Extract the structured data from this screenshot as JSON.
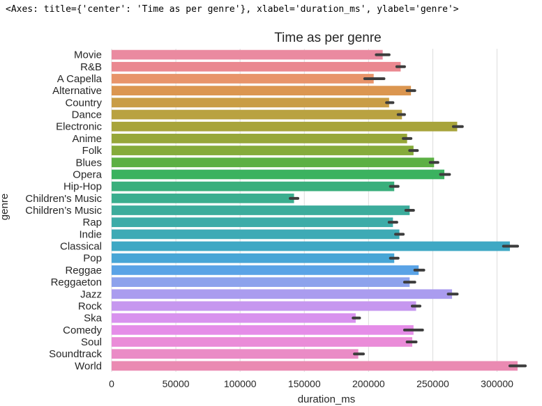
{
  "repr_text": "<Axes: title={'center': 'Time as per genre'}, xlabel='duration_ms', ylabel='genre'>",
  "chart_data": {
    "type": "bar",
    "orientation": "horizontal",
    "title": "Time as per genre",
    "xlabel": "duration_ms",
    "ylabel": "genre",
    "xlim": [
      0,
      335000
    ],
    "xticks": [
      0,
      50000,
      100000,
      150000,
      200000,
      250000,
      300000
    ],
    "grid": "vertical",
    "categories": [
      "Movie",
      "R&B",
      "A Capella",
      "Alternative",
      "Country",
      "Dance",
      "Electronic",
      "Anime",
      "Folk",
      "Blues",
      "Opera",
      "Hip-Hop",
      "Children's Music",
      "Children’s Music",
      "Rap",
      "Indie",
      "Classical",
      "Pop",
      "Reggae",
      "Reggaeton",
      "Jazz",
      "Rock",
      "Ska",
      "Comedy",
      "Soul",
      "Soundtrack",
      "World"
    ],
    "values": [
      211000,
      225000,
      204000,
      233000,
      216000,
      226000,
      269000,
      230000,
      235000,
      251000,
      259000,
      220000,
      142000,
      232000,
      219000,
      224000,
      310000,
      220000,
      239000,
      232000,
      265000,
      237000,
      190000,
      235000,
      234000,
      192000,
      316000
    ],
    "ci": [
      [
        206000,
        216000
      ],
      [
        222000,
        228000
      ],
      [
        197000,
        212000
      ],
      [
        230000,
        236000
      ],
      [
        214000,
        219000
      ],
      [
        223000,
        228000
      ],
      [
        266000,
        273000
      ],
      [
        227000,
        233000
      ],
      [
        232000,
        238000
      ],
      [
        248000,
        254000
      ],
      [
        256000,
        263000
      ],
      [
        217000,
        223000
      ],
      [
        139000,
        145000
      ],
      [
        229000,
        235000
      ],
      [
        216000,
        222000
      ],
      [
        221000,
        227000
      ],
      [
        305000,
        316000
      ],
      [
        217000,
        223000
      ],
      [
        236000,
        243000
      ],
      [
        228000,
        236000
      ],
      [
        262000,
        269000
      ],
      [
        234000,
        240000
      ],
      [
        188000,
        193000
      ],
      [
        228000,
        242000
      ],
      [
        230000,
        237000
      ],
      [
        189000,
        196000
      ],
      [
        310000,
        322000
      ]
    ],
    "colors": [
      "#ea8aa0",
      "#ea8890",
      "#e8946a",
      "#db9650",
      "#c99d45",
      "#b9a241",
      "#a8a43b",
      "#97a73a",
      "#85ab3b",
      "#5cb044",
      "#3bb25f",
      "#3aaf7c",
      "#3bae8f",
      "#3cac9c",
      "#3daca8",
      "#3eaab5",
      "#3fa8c4",
      "#48a6d6",
      "#5aa3e6",
      "#8da2ec",
      "#aa9cef",
      "#c697ef",
      "#d892ee",
      "#e58de8",
      "#ea8cd8",
      "#ea8bc6",
      "#ea8ab2"
    ]
  }
}
